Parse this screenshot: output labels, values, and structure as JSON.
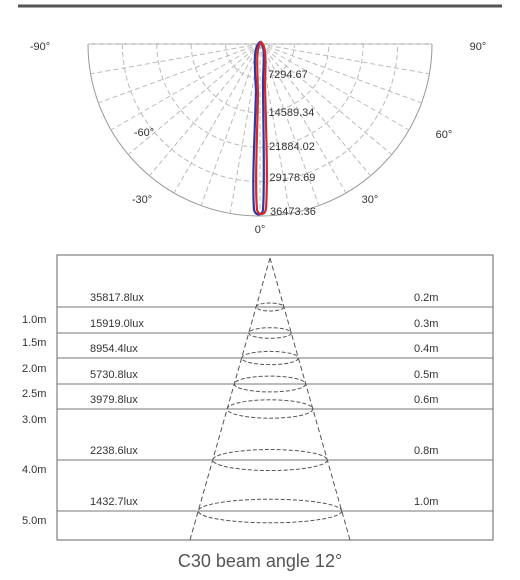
{
  "polar": {
    "angle_labels": [
      "-90°",
      "90°",
      "-60°",
      "60°",
      "-30°",
      "30°",
      "0°"
    ],
    "radial_labels": [
      "7294.67",
      "14589.34",
      "21884.02",
      "29178.69",
      "36473.36"
    ]
  },
  "cone": {
    "distances": [
      "1.0m",
      "1.5m",
      "2.0m",
      "2.5m",
      "3.0m",
      "4.0m",
      "5.0m"
    ],
    "illuminance": [
      "35817.8lux",
      "15919.0lux",
      "8954.4lux",
      "5730.8lux",
      "3979.8lux",
      "2238.6lux",
      "1432.7lux"
    ],
    "diameters": [
      "0.2m",
      "0.3m",
      "0.4m",
      "0.5m",
      "0.6m",
      "0.8m",
      "1.0m"
    ]
  },
  "caption": "C30 beam angle 12°"
}
